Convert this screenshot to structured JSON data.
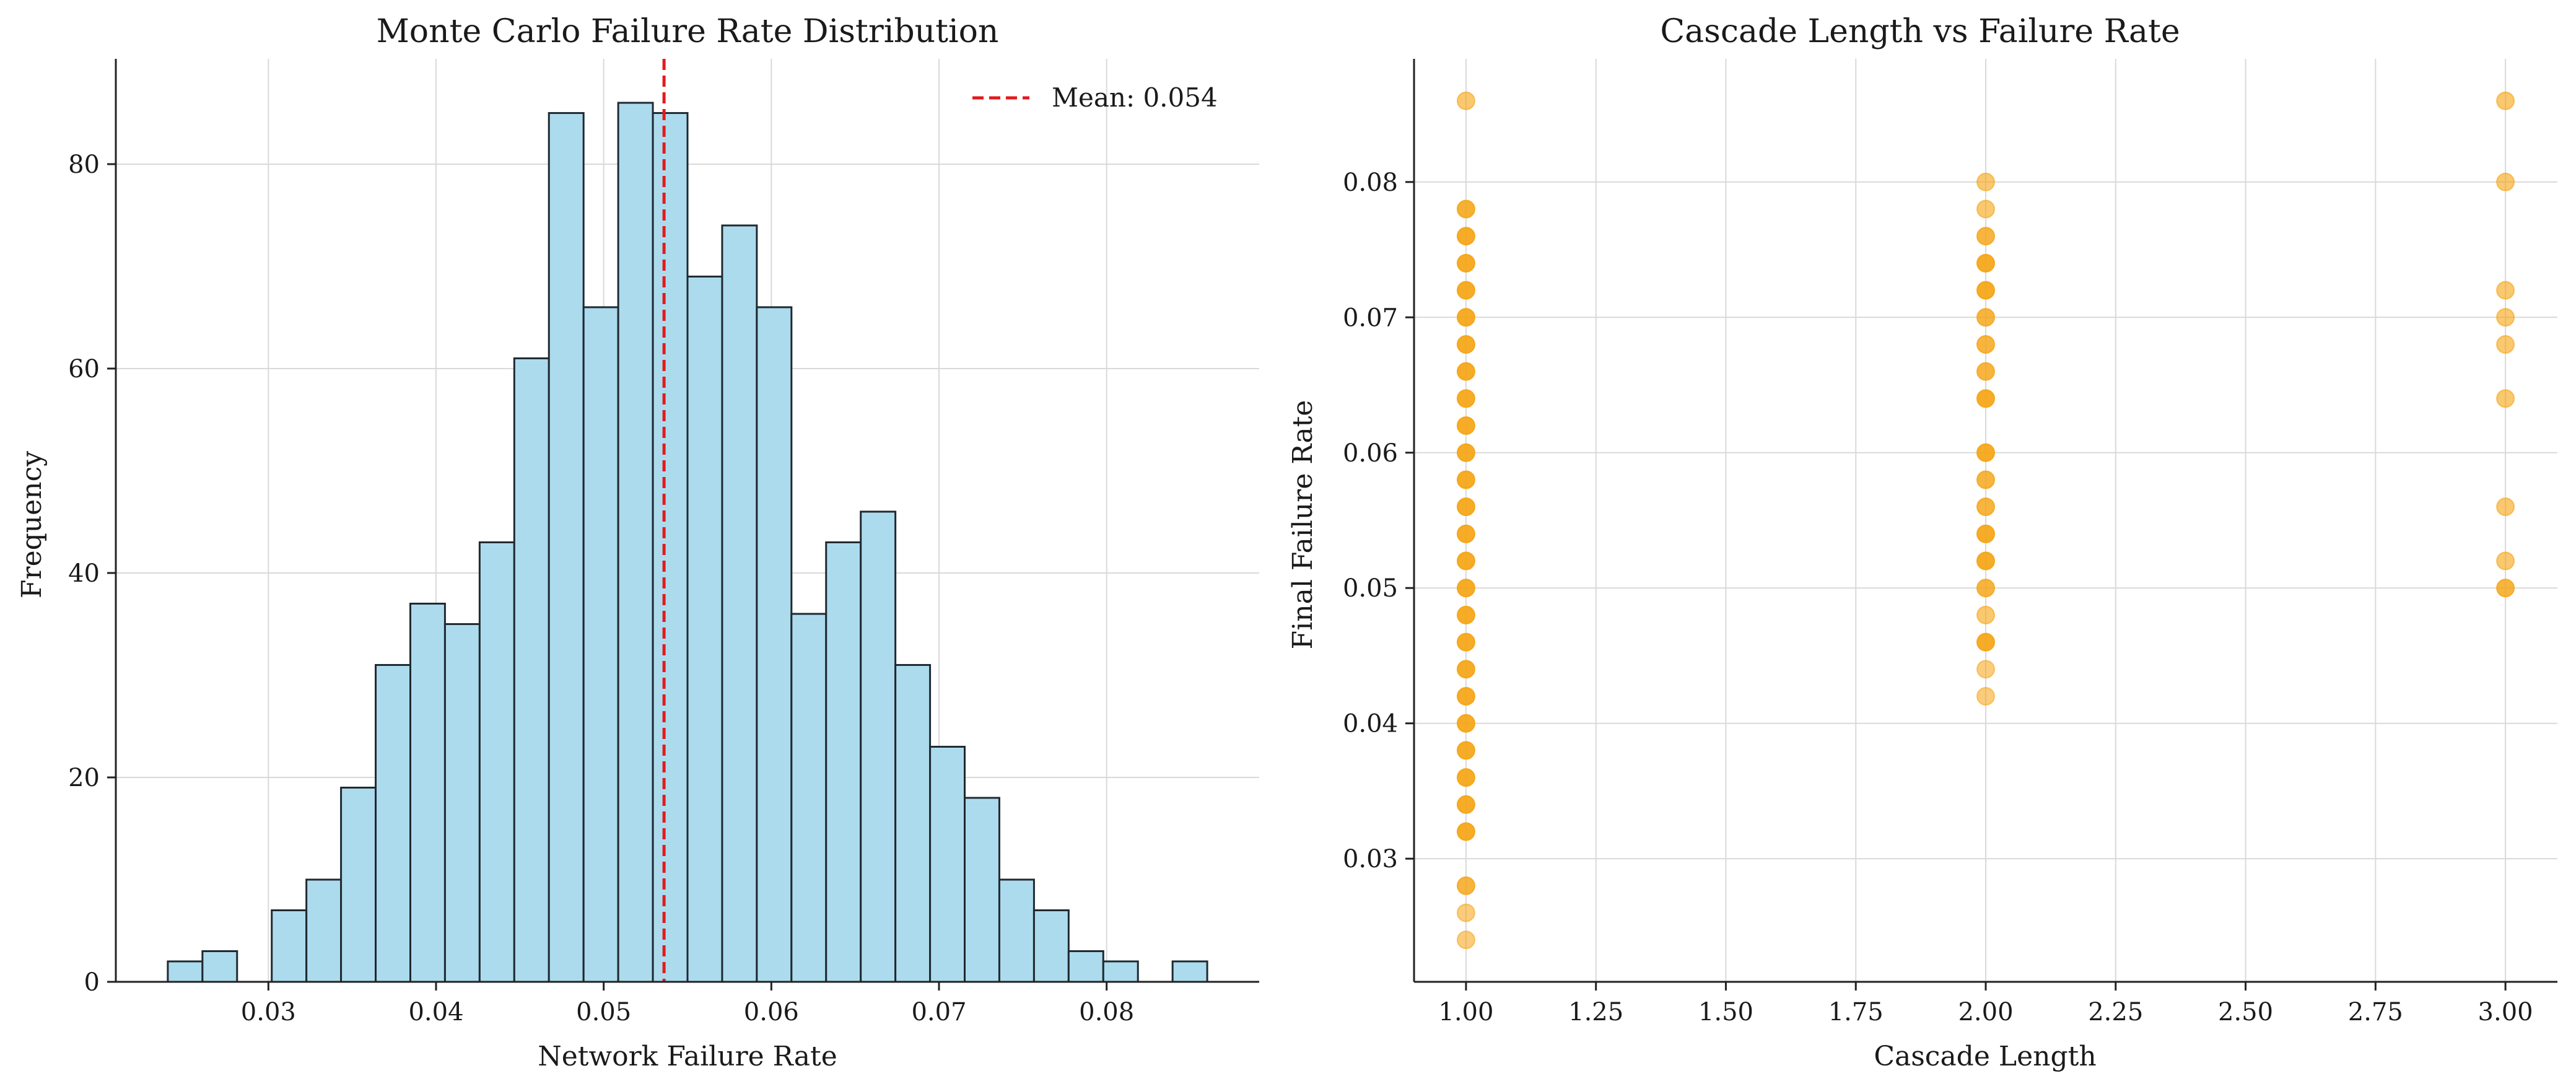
{
  "chart_data": [
    {
      "type": "bar",
      "title": "Monte Carlo Failure Rate Distribution",
      "xlabel": "Network Failure Rate",
      "ylabel": "Frequency",
      "xlim": [
        0.0209,
        0.0891
      ],
      "ylim": [
        0,
        90.3
      ],
      "xticks": [
        0.03,
        0.04,
        0.05,
        0.06,
        0.07,
        0.08
      ],
      "yticks": [
        0,
        20,
        40,
        60,
        80
      ],
      "bin_edges": [
        0.024,
        0.026067,
        0.028133,
        0.0302,
        0.032267,
        0.034333,
        0.0364,
        0.038467,
        0.040533,
        0.0426,
        0.044667,
        0.046733,
        0.0488,
        0.050867,
        0.052933,
        0.055,
        0.057067,
        0.059133,
        0.0612,
        0.063267,
        0.065333,
        0.0674,
        0.069467,
        0.071533,
        0.0736,
        0.075667,
        0.077733,
        0.0798,
        0.081867,
        0.083933,
        0.086
      ],
      "values": [
        2,
        3,
        0,
        7,
        10,
        19,
        31,
        37,
        35,
        43,
        61,
        85,
        66,
        86,
        85,
        69,
        74,
        66,
        36,
        43,
        46,
        31,
        23,
        18,
        10,
        7,
        3,
        2,
        0,
        2
      ],
      "bar_color": "#ADDBEE",
      "edge_color": "#1f2a30",
      "mean": 0.0536,
      "mean_color": "#e31a1c",
      "legend": {
        "label": "Mean: 0.054",
        "placement": "upper right"
      },
      "grid": true
    },
    {
      "type": "scatter",
      "title": "Cascade Length vs Failure Rate",
      "xlabel": "Cascade Length",
      "ylabel": "Final Failure Rate",
      "xlim": [
        0.9,
        3.1
      ],
      "ylim": [
        0.0209,
        0.0891
      ],
      "xticks": [
        1.0,
        1.25,
        1.5,
        1.75,
        2.0,
        2.25,
        2.5,
        2.75,
        3.0
      ],
      "yticks": [
        0.03,
        0.04,
        0.05,
        0.06,
        0.07,
        0.08
      ],
      "point_color": "#F5A30F",
      "grid": true,
      "points": [
        {
          "x": 1,
          "y": 0.086,
          "a": 0.6
        },
        {
          "x": 1,
          "y": 0.078,
          "a": 0.85
        },
        {
          "x": 1,
          "y": 0.076,
          "a": 0.9
        },
        {
          "x": 1,
          "y": 0.074,
          "a": 0.9
        },
        {
          "x": 1,
          "y": 0.072,
          "a": 0.9
        },
        {
          "x": 1,
          "y": 0.07,
          "a": 0.9
        },
        {
          "x": 1,
          "y": 0.068,
          "a": 0.9
        },
        {
          "x": 1,
          "y": 0.066,
          "a": 0.9
        },
        {
          "x": 1,
          "y": 0.064,
          "a": 0.9
        },
        {
          "x": 1,
          "y": 0.062,
          "a": 0.9
        },
        {
          "x": 1,
          "y": 0.06,
          "a": 0.9
        },
        {
          "x": 1,
          "y": 0.058,
          "a": 0.9
        },
        {
          "x": 1,
          "y": 0.056,
          "a": 0.9
        },
        {
          "x": 1,
          "y": 0.054,
          "a": 0.9
        },
        {
          "x": 1,
          "y": 0.052,
          "a": 0.9
        },
        {
          "x": 1,
          "y": 0.05,
          "a": 0.9
        },
        {
          "x": 1,
          "y": 0.048,
          "a": 0.9
        },
        {
          "x": 1,
          "y": 0.046,
          "a": 0.9
        },
        {
          "x": 1,
          "y": 0.044,
          "a": 0.9
        },
        {
          "x": 1,
          "y": 0.042,
          "a": 0.9
        },
        {
          "x": 1,
          "y": 0.04,
          "a": 0.9
        },
        {
          "x": 1,
          "y": 0.038,
          "a": 0.9
        },
        {
          "x": 1,
          "y": 0.036,
          "a": 0.9
        },
        {
          "x": 1,
          "y": 0.034,
          "a": 0.9
        },
        {
          "x": 1,
          "y": 0.032,
          "a": 0.9
        },
        {
          "x": 1,
          "y": 0.028,
          "a": 0.8
        },
        {
          "x": 1,
          "y": 0.026,
          "a": 0.55
        },
        {
          "x": 1,
          "y": 0.024,
          "a": 0.55
        },
        {
          "x": 2,
          "y": 0.08,
          "a": 0.6
        },
        {
          "x": 2,
          "y": 0.078,
          "a": 0.6
        },
        {
          "x": 2,
          "y": 0.076,
          "a": 0.8
        },
        {
          "x": 2,
          "y": 0.074,
          "a": 0.9
        },
        {
          "x": 2,
          "y": 0.072,
          "a": 0.9
        },
        {
          "x": 2,
          "y": 0.07,
          "a": 0.8
        },
        {
          "x": 2,
          "y": 0.068,
          "a": 0.8
        },
        {
          "x": 2,
          "y": 0.066,
          "a": 0.8
        },
        {
          "x": 2,
          "y": 0.064,
          "a": 0.9
        },
        {
          "x": 2,
          "y": 0.06,
          "a": 0.9
        },
        {
          "x": 2,
          "y": 0.058,
          "a": 0.8
        },
        {
          "x": 2,
          "y": 0.056,
          "a": 0.8
        },
        {
          "x": 2,
          "y": 0.054,
          "a": 0.9
        },
        {
          "x": 2,
          "y": 0.052,
          "a": 0.9
        },
        {
          "x": 2,
          "y": 0.05,
          "a": 0.8
        },
        {
          "x": 2,
          "y": 0.048,
          "a": 0.6
        },
        {
          "x": 2,
          "y": 0.046,
          "a": 0.9
        },
        {
          "x": 2,
          "y": 0.044,
          "a": 0.55
        },
        {
          "x": 2,
          "y": 0.042,
          "a": 0.55
        },
        {
          "x": 3,
          "y": 0.086,
          "a": 0.6
        },
        {
          "x": 3,
          "y": 0.08,
          "a": 0.6
        },
        {
          "x": 3,
          "y": 0.072,
          "a": 0.6
        },
        {
          "x": 3,
          "y": 0.07,
          "a": 0.6
        },
        {
          "x": 3,
          "y": 0.068,
          "a": 0.6
        },
        {
          "x": 3,
          "y": 0.064,
          "a": 0.6
        },
        {
          "x": 3,
          "y": 0.056,
          "a": 0.6
        },
        {
          "x": 3,
          "y": 0.052,
          "a": 0.6
        },
        {
          "x": 3,
          "y": 0.05,
          "a": 0.8
        }
      ]
    }
  ]
}
